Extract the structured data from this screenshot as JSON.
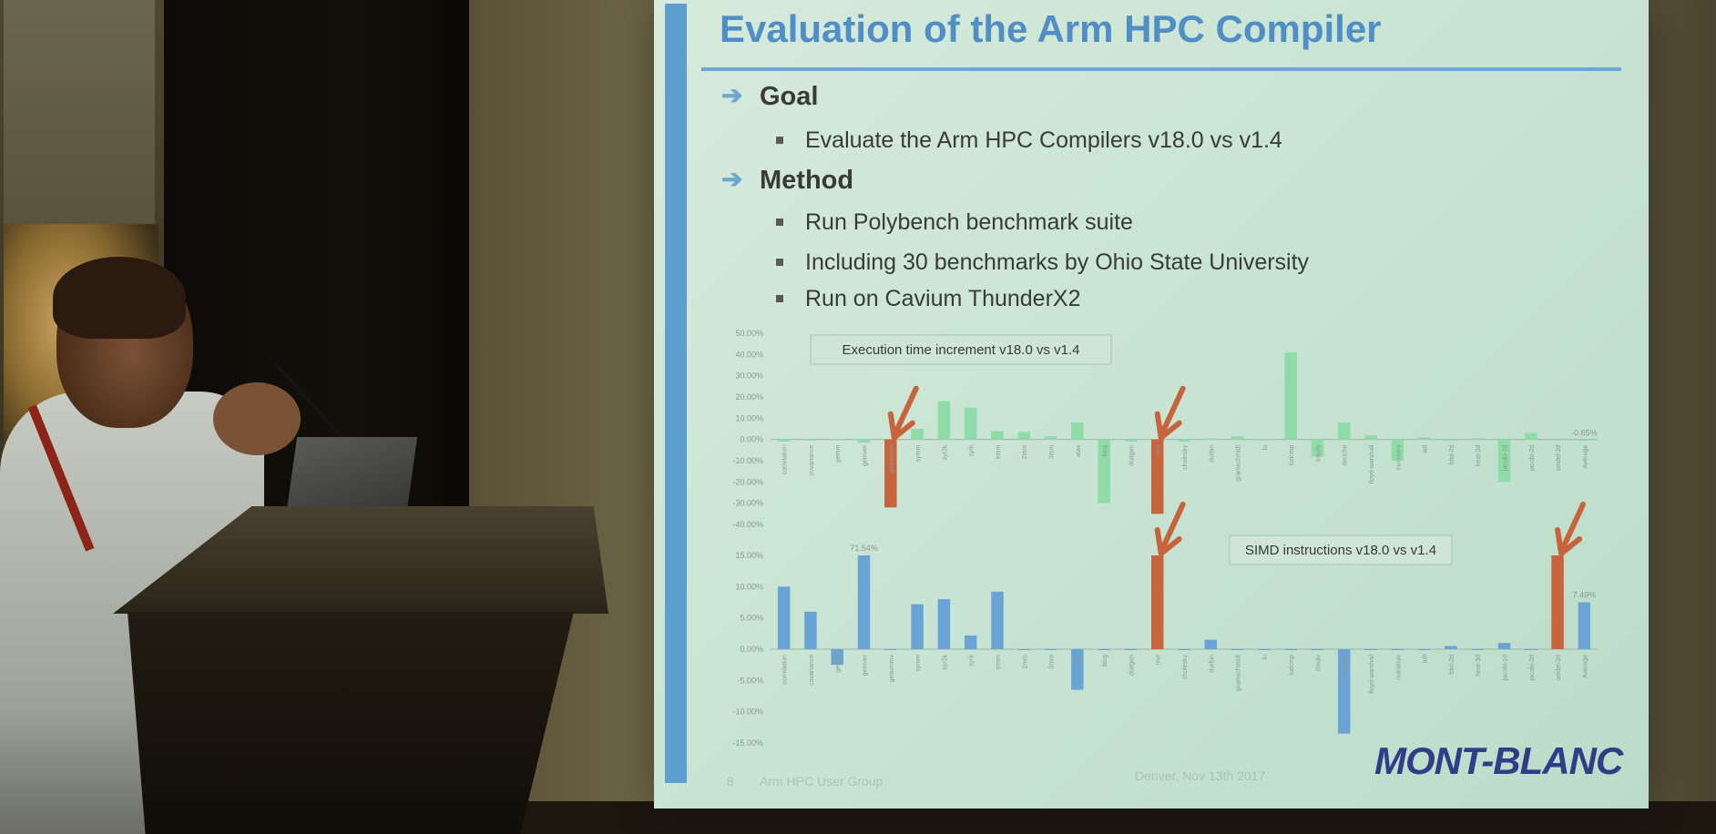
{
  "slide": {
    "title": "Evaluation of the Arm HPC Compiler",
    "goal_heading": "Goal",
    "goal_items": [
      "Evaluate the Arm HPC Compilers v18.0 vs v1.4"
    ],
    "method_heading": "Method",
    "method_items": [
      "Run Polybench benchmark suite",
      "Including 30 benchmarks by Ohio State University",
      "Run on Cavium ThunderX2"
    ],
    "footer_page": "8",
    "footer_event": "Arm HPC User Group",
    "footer_date": "Denver, Nov 13th 2017",
    "logo": "MONT-BLANC"
  },
  "colors": {
    "title_blue": "#4f8fc6",
    "green_bar": "#8fdca8",
    "blue_bar": "#6aa4d6",
    "highlight_bar": "#c8643c",
    "arrow_red": "#c8643c",
    "logo_navy": "#2f3e86"
  },
  "chart_data": [
    {
      "type": "bar",
      "title": "Execution time increment v18.0 vs v1.4",
      "ylim": [
        -40,
        50
      ],
      "yticks": [
        "50.00%",
        "40.00%",
        "30.00%",
        "20.00%",
        "10.00%",
        "0.00%",
        "-10.00%",
        "-20.00%",
        "-30.00%",
        "-40.00%"
      ],
      "categories": [
        "correlation",
        "covariance",
        "gemm",
        "gemver",
        "gesummv",
        "symm",
        "syr2k",
        "syrk",
        "trmm",
        "2mm",
        "3mm",
        "atax",
        "bicg",
        "doitgen",
        "mvt",
        "cholesky",
        "durbin",
        "gramschmidt",
        "lu",
        "ludcmp",
        "trisolv",
        "deriche",
        "floyd-warshall",
        "nussinov",
        "adi",
        "fdtd-2d",
        "heat-3d",
        "jacobi-1d",
        "jacobi-2d",
        "seidel-2d",
        "Average"
      ],
      "values": [
        -1,
        -0.5,
        -0.3,
        -1.5,
        -32,
        5,
        18,
        15,
        4,
        3.5,
        1.5,
        8,
        -30,
        -1,
        -35,
        -1,
        0.5,
        1.5,
        -0.3,
        41,
        -8,
        8,
        2,
        -10,
        1,
        -0.5,
        0.5,
        -20,
        3,
        0,
        -0.65
      ],
      "highlighted": [
        "gesummv",
        "mvt"
      ],
      "data_labels": {
        "Average": "-0.65%"
      }
    },
    {
      "type": "bar",
      "title": "SIMD instructions v18.0 vs v1.4",
      "ylim": [
        -15,
        15
      ],
      "yticks": [
        "15.00%",
        "10.00%",
        "5.00%",
        "0.00%",
        "-5.00%",
        "-10.00%",
        "-15.00%"
      ],
      "categories": [
        "correlation",
        "covariance",
        "gemm",
        "gemver",
        "gesummv",
        "symm",
        "syr2k",
        "syrk",
        "trmm",
        "2mm",
        "3mm",
        "atax",
        "bicg",
        "doitgen",
        "mvt",
        "cholesky",
        "durbin",
        "gramschmidt",
        "lu",
        "ludcmp",
        "trisolv",
        "deriche",
        "floyd-warshall",
        "nussinov",
        "adi",
        "fdtd-2d",
        "heat-3d",
        "jacobi-1d",
        "jacobi-2d",
        "seidel-2d",
        "Average"
      ],
      "values": [
        10,
        6,
        -2.5,
        15,
        0,
        7.2,
        8,
        2.2,
        9.2,
        0,
        0,
        -6.5,
        0,
        0,
        15,
        0,
        1.5,
        0,
        0,
        0,
        0,
        -13.5,
        0,
        0,
        0,
        0.5,
        0,
        1,
        0,
        15,
        7.49
      ],
      "highlighted": [
        "mvt",
        "seidel-2d"
      ],
      "data_labels": {
        "gemver": "71.54%",
        "Average": "7.49%"
      }
    }
  ]
}
